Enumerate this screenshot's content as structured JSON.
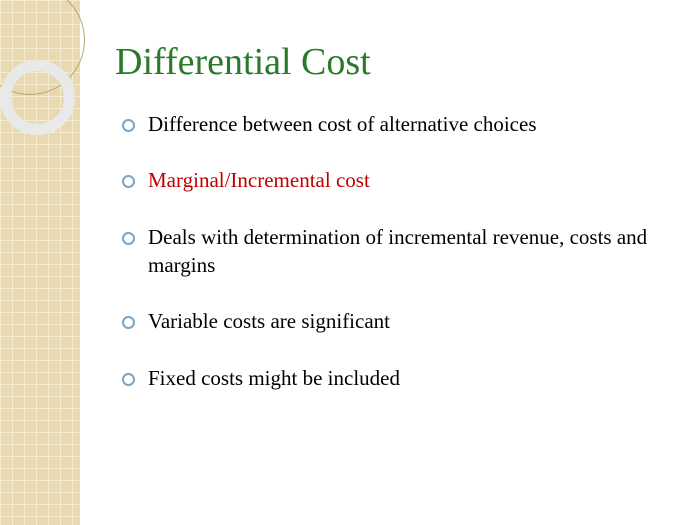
{
  "title": {
    "text": "Differential Cost",
    "color": "#2a7a2a",
    "fontsize": 38
  },
  "bullets": [
    {
      "text": "Difference between cost of alternative choices",
      "color": "#000000"
    },
    {
      "text": "Marginal/Incremental cost",
      "color": "#c00000"
    },
    {
      "text": "Deals with determination of incremental revenue, costs and margins",
      "color": "#000000"
    },
    {
      "text": "Variable costs are significant",
      "color": "#000000"
    },
    {
      "text": "Fixed costs might be included",
      "color": "#000000"
    }
  ],
  "style": {
    "bullet_ring_color": "#7aa5c4",
    "bullet_fontsize": 21,
    "sidebar_grid_bg": "#e8d9b0",
    "sidebar_grid_line": "#f5ecd0",
    "circle_outer_border": "#b8a876",
    "circle_thick_border": "#e9e9e9",
    "background": "#ffffff"
  }
}
